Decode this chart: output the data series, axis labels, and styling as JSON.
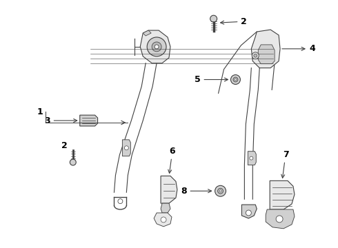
{
  "bg_color": "#ffffff",
  "line_color": "#404040",
  "label_color": "#000000",
  "lw": 0.8,
  "figsize": [
    4.9,
    3.6
  ],
  "dpi": 100
}
